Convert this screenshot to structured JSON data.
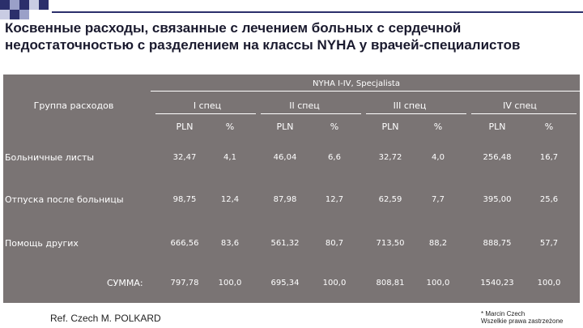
{
  "slide": {
    "title": "Косвенные расходы, связанные с лечением больных с сердечной недостаточностью с разделением на классы NYHA у врачей-специалистов",
    "ref": "Ref. Czech M. POLKARD",
    "copyright_line1": "* Marcin Czech",
    "copyright_line2": "Wszelkie prawa zastrzeżone",
    "panel_color": "#7a7474",
    "accent_color": "#2b2f6b"
  },
  "table": {
    "super_header": "NYHA I-IV, Specjalista",
    "group_header": "Группа расходов",
    "classes": [
      "I спец",
      "II спец",
      "III спец",
      "IV спец"
    ],
    "subheaders": [
      "PLN",
      "%",
      "PLN",
      "%",
      "PLN",
      "%",
      "PLN",
      "%"
    ],
    "rows": [
      {
        "label": "Больничные листы",
        "values": [
          "32,47",
          "4,1",
          "46,04",
          "6,6",
          "32,72",
          "4,0",
          "256,48",
          "16,7"
        ]
      },
      {
        "label": "Отпуска после больницы",
        "values": [
          "98,75",
          "12,4",
          "87,98",
          "12,7",
          "62,59",
          "7,7",
          "395,00",
          "25,6"
        ]
      },
      {
        "label": "Помощь других",
        "values": [
          "666,56",
          "83,6",
          "561,32",
          "80,7",
          "713,50",
          "88,2",
          "888,75",
          "57,7"
        ]
      },
      {
        "label": "СУММА:",
        "values": [
          "797,78",
          "100,0",
          "695,34",
          "100,0",
          "808,81",
          "100,0",
          "1540,23",
          "100,0"
        ]
      }
    ]
  }
}
